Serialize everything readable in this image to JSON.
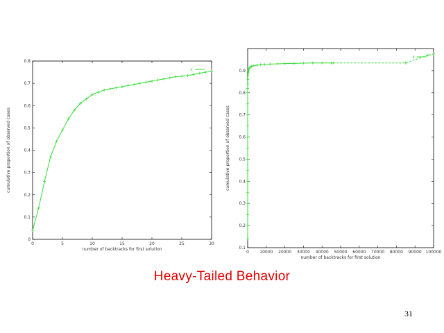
{
  "slide": {
    "title": "Heavy-Tailed Behavior",
    "number": "31"
  },
  "colors": {
    "series": "#33dd33",
    "title": "#e00000"
  },
  "chart_data": [
    {
      "type": "line",
      "title": "",
      "xlabel": "number of backtracks for first solution",
      "ylabel": "cumulative proportion of observed cases",
      "xlim": [
        0,
        30
      ],
      "ylim": [
        0,
        0.8
      ],
      "x_ticks": [
        "0",
        "5",
        "10",
        "15",
        "20",
        "25",
        "30"
      ],
      "y_ticks": [
        "0",
        "0.1",
        "0.2",
        "0.3",
        "0.4",
        "0.5",
        "0.6",
        "0.7",
        "0.8"
      ],
      "legend": "top-right",
      "series": [
        {
          "name": "",
          "x": [
            0,
            1,
            2,
            3,
            4,
            5,
            6,
            7,
            8,
            9,
            10,
            11,
            12,
            13,
            14,
            15,
            16,
            17,
            18,
            19,
            20,
            21,
            22,
            23,
            24,
            25,
            26,
            27,
            28,
            29,
            30
          ],
          "y": [
            0.04,
            0.14,
            0.26,
            0.37,
            0.44,
            0.49,
            0.54,
            0.58,
            0.61,
            0.63,
            0.65,
            0.66,
            0.67,
            0.675,
            0.68,
            0.685,
            0.69,
            0.695,
            0.7,
            0.705,
            0.71,
            0.715,
            0.72,
            0.725,
            0.73,
            0.732,
            0.735,
            0.74,
            0.745,
            0.75,
            0.755
          ]
        }
      ]
    },
    {
      "type": "line",
      "title": "",
      "xlabel": "number of backtracks for first solution",
      "ylabel": "cumulative proportion of observed cases",
      "xlim": [
        0,
        100000
      ],
      "ylim": [
        0.1,
        1.0
      ],
      "x_ticks": [
        "0",
        "10000",
        "20000",
        "30000",
        "40000",
        "50000",
        "60000",
        "70000",
        "80000",
        "90000",
        "100000"
      ],
      "y_ticks": [
        "0.1",
        "0.2",
        "0.3",
        "0.4",
        "0.5",
        "0.6",
        "0.7",
        "0.8",
        "0.9"
      ],
      "legend": "top-right",
      "series": [
        {
          "name": "",
          "x": [
            0,
            0,
            0,
            0,
            0,
            0,
            0,
            0,
            0,
            0,
            0,
            0,
            0,
            0,
            0,
            50,
            100,
            200,
            300,
            500,
            800,
            1200,
            2000,
            3000,
            5000,
            7000,
            9000,
            12000,
            16000,
            20000,
            25000,
            30000,
            35000,
            40000,
            45000,
            46000,
            85000,
            97000,
            100000
          ],
          "y": [
            0.14,
            0.2,
            0.25,
            0.3,
            0.35,
            0.4,
            0.45,
            0.5,
            0.55,
            0.6,
            0.65,
            0.7,
            0.75,
            0.8,
            0.82,
            0.84,
            0.86,
            0.88,
            0.89,
            0.9,
            0.91,
            0.915,
            0.92,
            0.922,
            0.925,
            0.927,
            0.928,
            0.93,
            0.931,
            0.932,
            0.933,
            0.934,
            0.935,
            0.935,
            0.935,
            0.935,
            0.935,
            0.97,
            0.975
          ]
        }
      ]
    }
  ]
}
